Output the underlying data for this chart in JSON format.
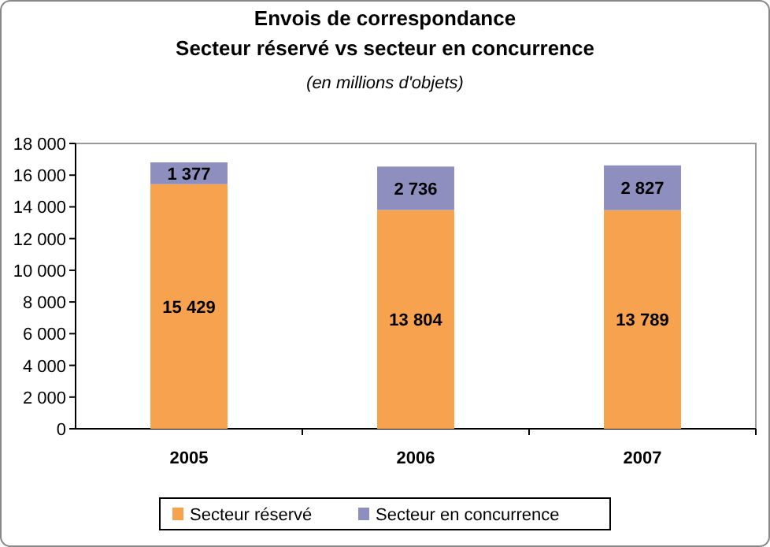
{
  "chart_data": {
    "type": "bar",
    "title": "Envois de correspondance",
    "subtitle": "Secteur réservé vs secteur en concurrence",
    "annotations": [
      "(en millions d'objets)"
    ],
    "categories": [
      "2005",
      "2006",
      "2007"
    ],
    "stacked": true,
    "series": [
      {
        "name": "Secteur réservé",
        "color": "#f7a24f",
        "values": [
          15429,
          13804,
          13789
        ],
        "value_labels": [
          "15 429",
          "13 804",
          "13 789"
        ]
      },
      {
        "name": "Secteur en concurrence",
        "color": "#8f8fbf",
        "values": [
          1377,
          2736,
          2827
        ],
        "value_labels": [
          "1 377",
          "2 736",
          "2 827"
        ]
      }
    ],
    "ylim": [
      0,
      18000
    ],
    "yticks": [
      {
        "value": 0,
        "label": "0"
      },
      {
        "value": 2000,
        "label": "2 000"
      },
      {
        "value": 4000,
        "label": "4 000"
      },
      {
        "value": 6000,
        "label": "6 000"
      },
      {
        "value": 8000,
        "label": "8 000"
      },
      {
        "value": 10000,
        "label": "10 000"
      },
      {
        "value": 12000,
        "label": "12 000"
      },
      {
        "value": 14000,
        "label": "14 000"
      },
      {
        "value": 16000,
        "label": "16 000"
      },
      {
        "value": 18000,
        "label": "18 000"
      }
    ],
    "grid": false,
    "legend": "bottom"
  }
}
